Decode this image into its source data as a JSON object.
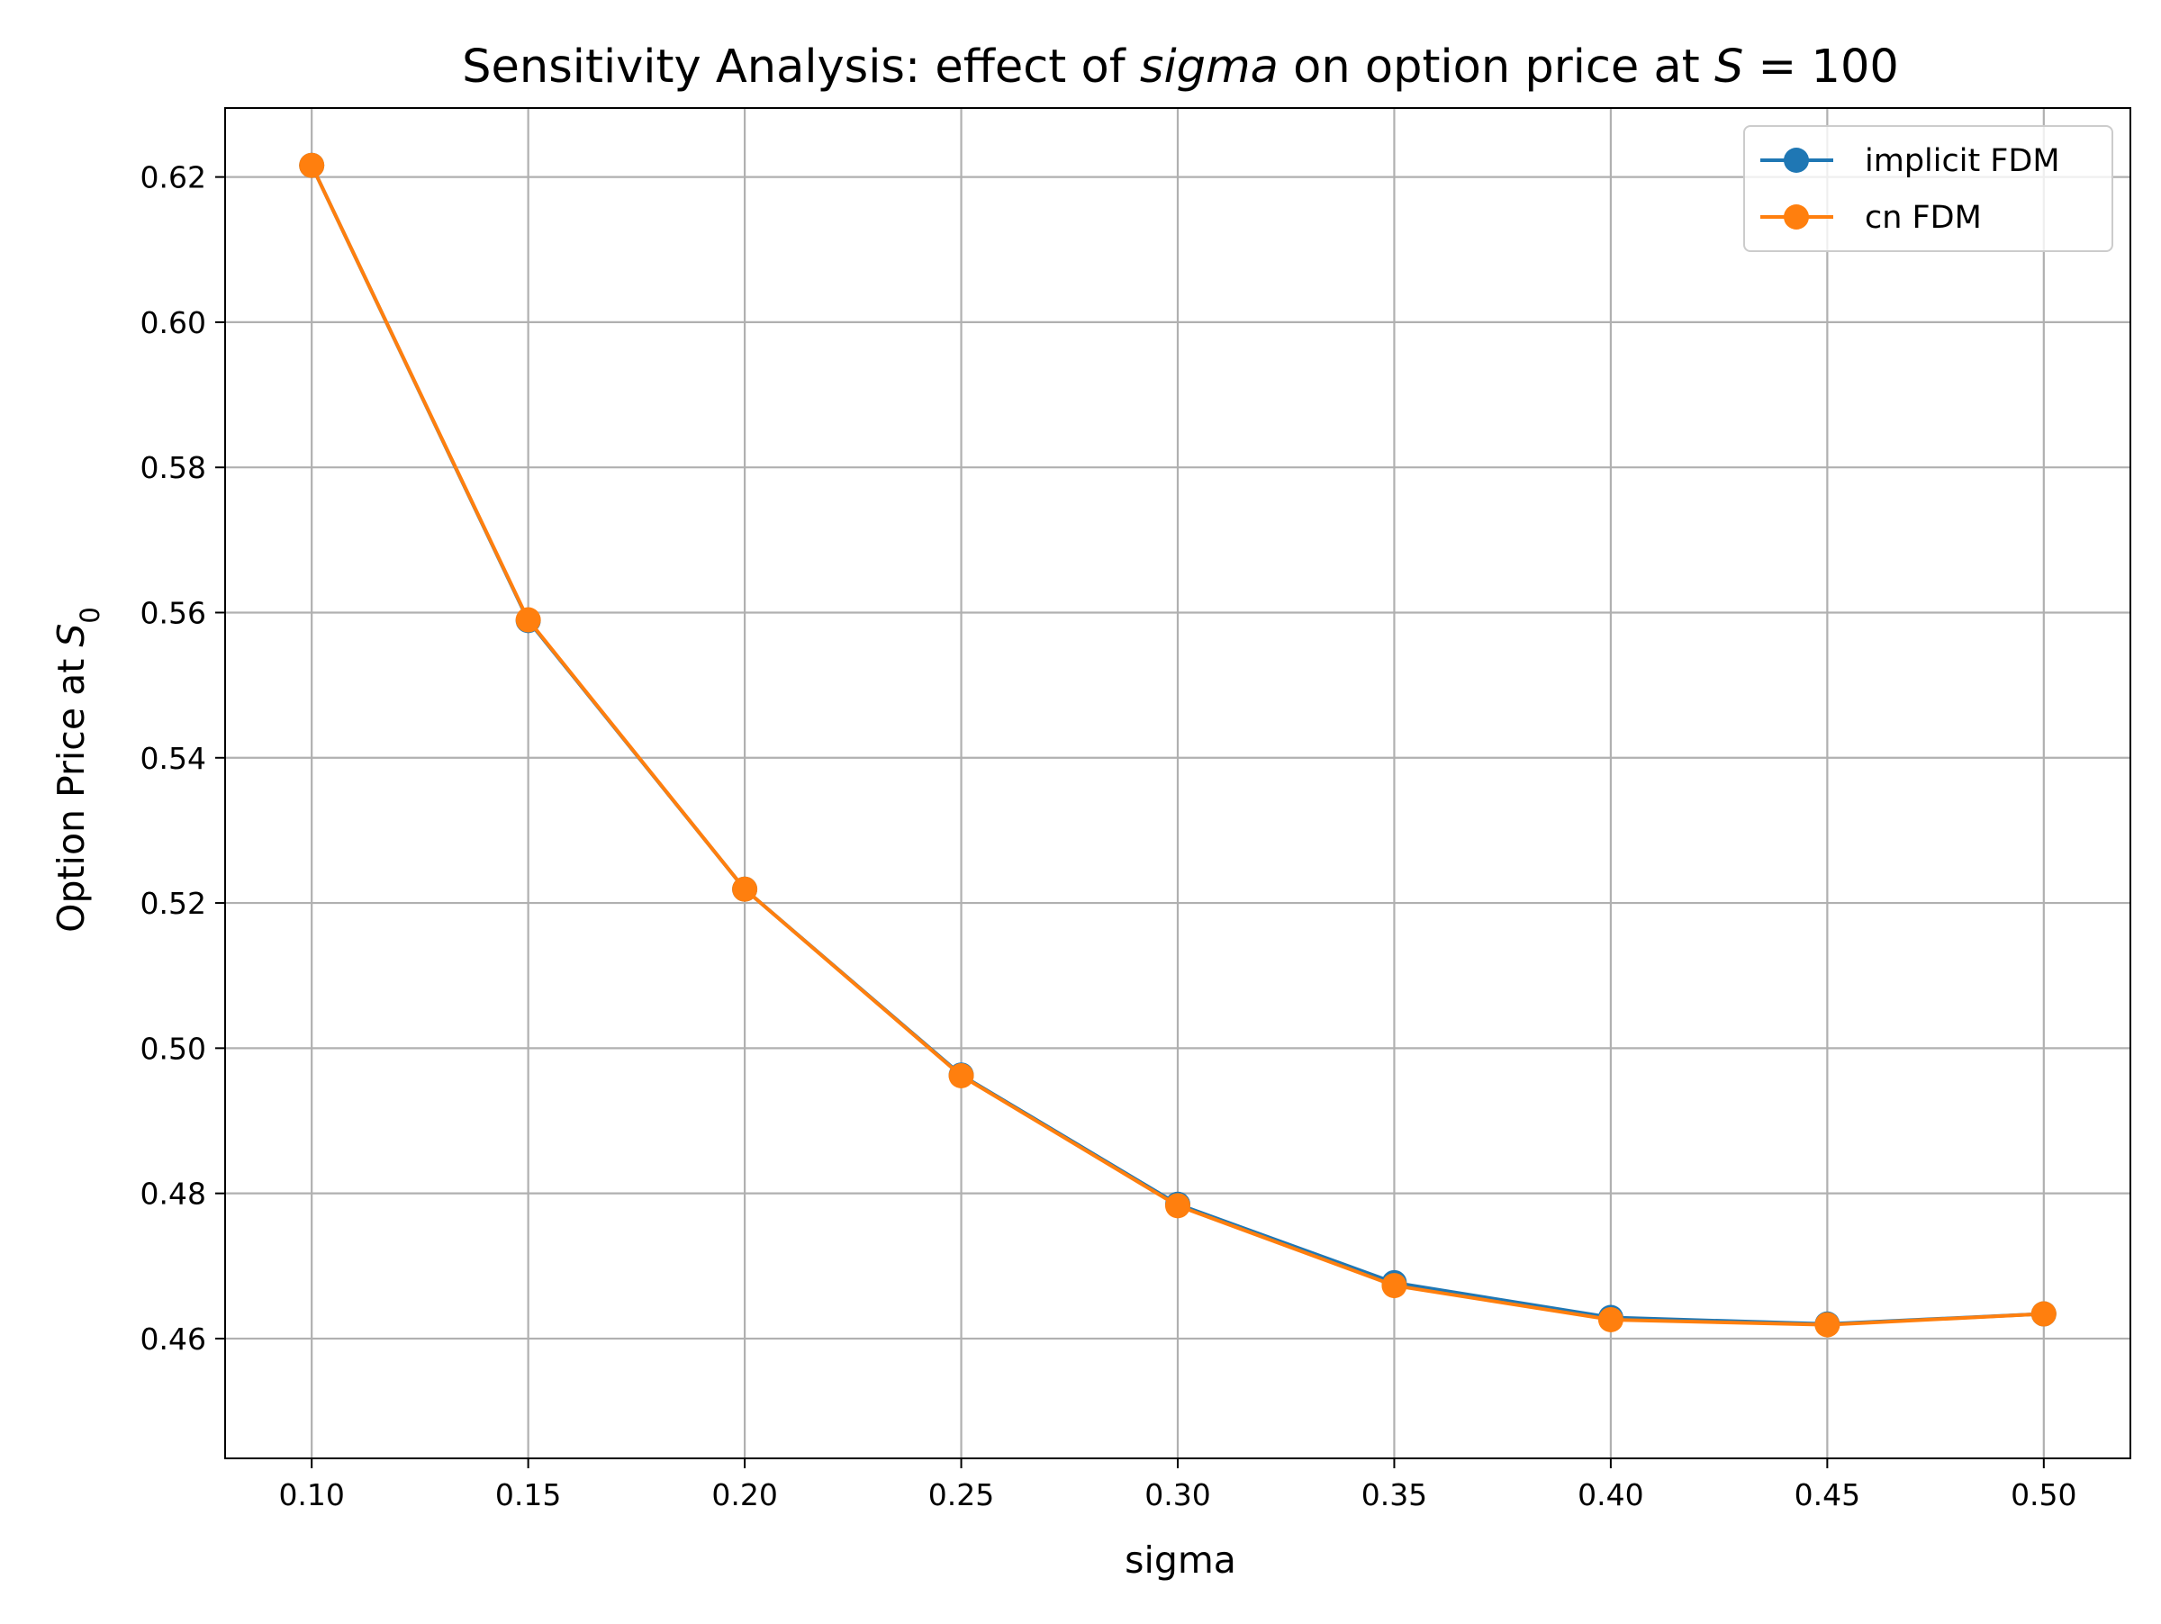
{
  "chart_data": {
    "type": "line",
    "title": {
      "prefix": "Sensitivity Analysis: effect of ",
      "param": "sigma",
      "middle": " on option price at ",
      "var": "S",
      "suffix": " = 100"
    },
    "xlabel": "sigma",
    "ylabel": {
      "prefix": "Option Price at ",
      "var": "S",
      "sub": "0"
    },
    "xlim": [
      0.08,
      0.52
    ],
    "ylim": [
      0.4435,
      0.6295
    ],
    "xticks": [
      {
        "value": 0.1,
        "label": "0.10"
      },
      {
        "value": 0.15,
        "label": "0.15"
      },
      {
        "value": 0.2,
        "label": "0.20"
      },
      {
        "value": 0.25,
        "label": "0.25"
      },
      {
        "value": 0.3,
        "label": "0.30"
      },
      {
        "value": 0.35,
        "label": "0.35"
      },
      {
        "value": 0.4,
        "label": "0.40"
      },
      {
        "value": 0.45,
        "label": "0.45"
      },
      {
        "value": 0.5,
        "label": "0.50"
      }
    ],
    "yticks": [
      {
        "value": 0.46,
        "label": "0.46"
      },
      {
        "value": 0.48,
        "label": "0.48"
      },
      {
        "value": 0.5,
        "label": "0.50"
      },
      {
        "value": 0.52,
        "label": "0.52"
      },
      {
        "value": 0.54,
        "label": "0.54"
      },
      {
        "value": 0.56,
        "label": "0.56"
      },
      {
        "value": 0.58,
        "label": "0.58"
      },
      {
        "value": 0.6,
        "label": "0.60"
      },
      {
        "value": 0.62,
        "label": "0.62"
      }
    ],
    "grid": true,
    "legend_position": "top-right",
    "x": [
      0.1,
      0.15,
      0.2,
      0.25,
      0.3,
      0.35,
      0.4,
      0.45,
      0.5
    ],
    "series": [
      {
        "name": "implicit FDM",
        "color": "#1f77b4",
        "marker": "circle",
        "values": [
          0.6216,
          0.5589,
          0.5219,
          0.4963,
          0.4785,
          0.4677,
          0.4629,
          0.462,
          0.4634
        ]
      },
      {
        "name": "cn FDM",
        "color": "#ff7f0e",
        "marker": "circle",
        "values": [
          0.6216,
          0.559,
          0.5219,
          0.4962,
          0.4783,
          0.4673,
          0.4626,
          0.4619,
          0.4634
        ]
      }
    ]
  }
}
